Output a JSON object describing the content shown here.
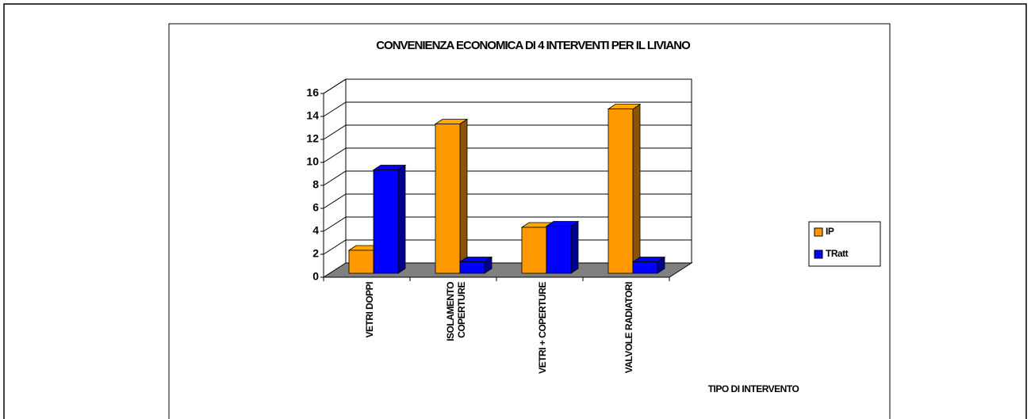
{
  "chart_data": {
    "type": "bar3d",
    "title": "CONVENIENZA ECONOMICA DI 4 INTERVENTI PER IL LIVIANO",
    "x_label": "TIPO DI INTERVENTO",
    "categories": [
      "VETRI DOPPI",
      "ISOLAMENTO COPERTURE",
      "VETRI + COPERTURE",
      "VALVOLE RADIATORI"
    ],
    "series": [
      {
        "name": "IP",
        "color": "#ff9900",
        "values": [
          2,
          13,
          4,
          14.3
        ]
      },
      {
        "name": "TRatt",
        "color": "#0000ff",
        "values": [
          9,
          1,
          4.1,
          1
        ]
      }
    ],
    "ylim": [
      0,
      16
    ],
    "yticks": [
      0,
      2,
      4,
      6,
      8,
      10,
      12,
      14,
      16
    ],
    "grid": true,
    "legend": "right"
  }
}
